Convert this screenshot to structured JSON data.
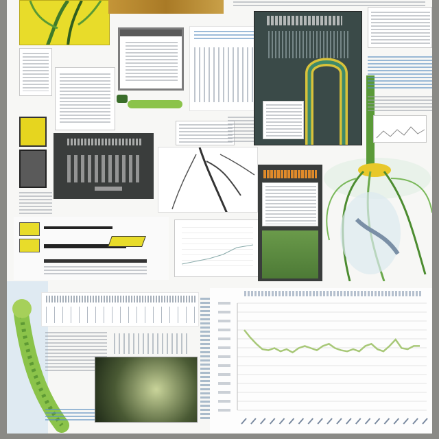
{
  "colors": {
    "leaf_green": "#9cc34a",
    "dark_green": "#3f6e2e",
    "yellow": "#e8d820",
    "wood": "#b8862e",
    "chart_line": "#a8c878",
    "panel_dark": "#3a3d3c"
  },
  "icons": [
    "plant-illustration",
    "corn-tassel-illustration",
    "caterpillar-illustration"
  ],
  "chart_data": {
    "type": "line",
    "title": "",
    "xlabel": "",
    "ylabel": "",
    "ylim": [
      0,
      1
    ],
    "grid": true,
    "series": [
      {
        "values": [
          0.75,
          0.68,
          0.62,
          0.57,
          0.56,
          0.58,
          0.55,
          0.57,
          0.54,
          0.58,
          0.6,
          0.58,
          0.56,
          0.6,
          0.62,
          0.58,
          0.56,
          0.55,
          0.57,
          0.55,
          0.6,
          0.62,
          0.57,
          0.55,
          0.6,
          0.66,
          0.58,
          0.57,
          0.6,
          0.6
        ]
      }
    ]
  }
}
